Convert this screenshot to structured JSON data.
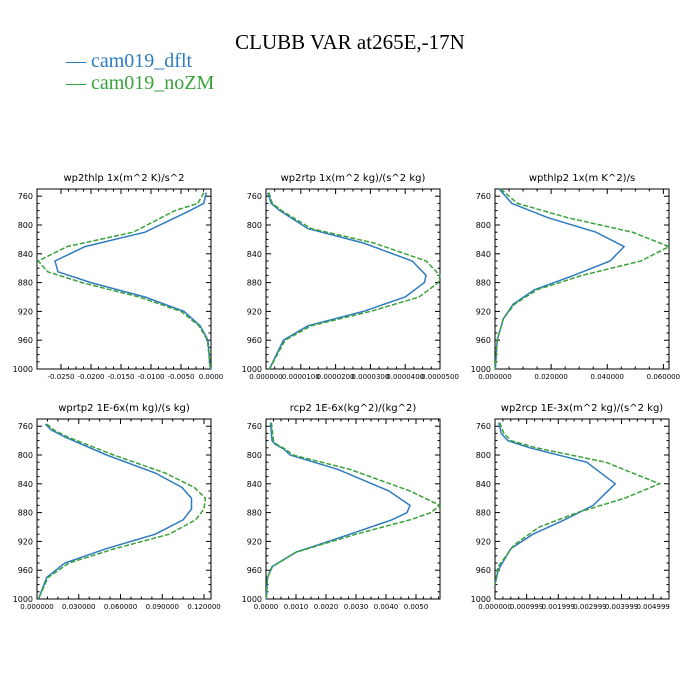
{
  "figure": {
    "title": "CLUBB VAR at265E,-17N",
    "legend": [
      {
        "label": "cam019_dflt",
        "color": "#2f7bbf"
      },
      {
        "label": "cam019_noZM",
        "color": "#3aa23a"
      }
    ]
  },
  "chart_data": [
    {
      "type": "line",
      "title": "wp2thlp   1x(m^2 K)/s^2",
      "y_ticks": [
        "760",
        "800",
        "840",
        "880",
        "920",
        "960",
        "1000"
      ],
      "x_ticks": [
        "-0.0250",
        "-0.0200",
        "-0.0150",
        "-0.0100",
        "-0.0050",
        "0.0000"
      ],
      "xlim": [
        -0.029,
        0.0
      ],
      "ylim": [
        750,
        1000
      ],
      "x_tick_values": [
        -0.025,
        -0.02,
        -0.015,
        -0.01,
        -0.005,
        0.0
      ],
      "series": [
        {
          "name": "cam019_dflt",
          "color": "#2f7bbf",
          "x": [
            -0.0008,
            -0.0012,
            -0.0035,
            -0.011,
            -0.021,
            -0.026,
            -0.0255,
            -0.02,
            -0.011,
            -0.0045,
            -0.0018,
            -0.0005,
            -0.0001
          ],
          "y": [
            755,
            770,
            780,
            810,
            830,
            850,
            865,
            880,
            900,
            920,
            940,
            960,
            1000
          ]
        },
        {
          "name": "cam019_noZM",
          "color": "#3aa23a",
          "x": [
            -0.0012,
            -0.0022,
            -0.006,
            -0.013,
            -0.024,
            -0.0288,
            -0.0272,
            -0.0215,
            -0.012,
            -0.005,
            -0.002,
            -0.0006,
            -0.0001
          ],
          "y": [
            755,
            770,
            780,
            810,
            830,
            850,
            865,
            880,
            900,
            920,
            940,
            960,
            1000
          ]
        }
      ]
    },
    {
      "type": "line",
      "title": "wp2rtp   1x(m^2 kg)/(s^2 kg)",
      "y_ticks": [
        "760",
        "800",
        "840",
        "880",
        "920",
        "960",
        "1000"
      ],
      "x_ticks": [
        "0.000000",
        "0.0000100",
        "0.0000200",
        "0.0000300",
        "0.0000400",
        "0.0000500"
      ],
      "xlim": [
        0.0,
        5e-05
      ],
      "ylim": [
        750,
        1000
      ],
      "x_tick_values": [
        0.0,
        1e-05,
        2e-05,
        3e-05,
        4e-05,
        5e-05
      ],
      "series": [
        {
          "name": "cam019_dflt",
          "color": "#2f7bbf",
          "x": [
            5e-07,
            1.5e-06,
            4e-06,
            1.2e-05,
            2.8e-05,
            4.2e-05,
            4.6e-05,
            4.55e-05,
            4e-05,
            2.8e-05,
            1.2e-05,
            5e-06,
            1e-06
          ],
          "y": [
            755,
            770,
            780,
            805,
            825,
            850,
            870,
            880,
            900,
            920,
            940,
            960,
            1000
          ]
        },
        {
          "name": "cam019_noZM",
          "color": "#3aa23a",
          "x": [
            8e-07,
            1.8e-06,
            4.5e-06,
            1.3e-05,
            3.1e-05,
            4.6e-05,
            5e-05,
            4.95e-05,
            4.4e-05,
            3e-05,
            1.3e-05,
            5.5e-06,
            1e-06
          ],
          "y": [
            755,
            770,
            780,
            805,
            825,
            850,
            870,
            880,
            900,
            920,
            940,
            960,
            1000
          ]
        }
      ]
    },
    {
      "type": "line",
      "title": "wpthlp2   1x(m K^2)/s",
      "y_ticks": [
        "760",
        "800",
        "840",
        "880",
        "920",
        "960",
        "1000"
      ],
      "x_ticks": [
        "0.000000",
        "0.020000",
        "0.040000",
        "0.060000"
      ],
      "xlim": [
        0.0,
        0.062
      ],
      "ylim": [
        750,
        1000
      ],
      "x_tick_values": [
        0.0,
        0.02,
        0.04,
        0.06
      ],
      "series": [
        {
          "name": "cam019_dflt",
          "color": "#2f7bbf",
          "x": [
            0.0015,
            0.006,
            0.019,
            0.036,
            0.046,
            0.041,
            0.028,
            0.014,
            0.0065,
            0.003,
            0.0008,
            0.0001
          ],
          "y": [
            750,
            770,
            790,
            810,
            830,
            850,
            870,
            890,
            910,
            930,
            960,
            1000
          ]
        },
        {
          "name": "cam019_noZM",
          "color": "#3aa23a",
          "x": [
            0.002,
            0.008,
            0.026,
            0.049,
            0.062,
            0.052,
            0.031,
            0.015,
            0.007,
            0.003,
            0.0008,
            0.0001
          ],
          "y": [
            750,
            770,
            790,
            810,
            830,
            850,
            870,
            890,
            910,
            930,
            960,
            1000
          ]
        }
      ]
    },
    {
      "type": "line",
      "title": "wprtp2   1E-6x(m kg)/(s kg)",
      "y_ticks": [
        "760",
        "800",
        "840",
        "880",
        "920",
        "960",
        "1000"
      ],
      "x_ticks": [
        "0.000000",
        "0.030000",
        "0.060000",
        "0.090000",
        "0.120000"
      ],
      "xlim": [
        0.0,
        0.125
      ],
      "ylim": [
        750,
        1000
      ],
      "x_tick_values": [
        0.0,
        0.03,
        0.06,
        0.09,
        0.12
      ],
      "series": [
        {
          "name": "cam019_dflt",
          "color": "#2f7bbf",
          "x": [
            0.006,
            0.01,
            0.02,
            0.05,
            0.085,
            0.104,
            0.111,
            0.111,
            0.105,
            0.085,
            0.05,
            0.02,
            0.007,
            0.001
          ],
          "y": [
            757,
            765,
            775,
            800,
            825,
            845,
            860,
            875,
            890,
            910,
            930,
            950,
            970,
            1000
          ]
        },
        {
          "name": "cam019_noZM",
          "color": "#3aa23a",
          "x": [
            0.007,
            0.012,
            0.022,
            0.055,
            0.092,
            0.113,
            0.121,
            0.12,
            0.114,
            0.095,
            0.056,
            0.023,
            0.008,
            0.001
          ],
          "y": [
            757,
            765,
            775,
            800,
            825,
            845,
            860,
            875,
            890,
            910,
            930,
            950,
            970,
            1000
          ]
        }
      ]
    },
    {
      "type": "line",
      "title": "rcp2   1E-6x(kg^2)/(kg^2)",
      "y_ticks": [
        "760",
        "800",
        "840",
        "880",
        "920",
        "960",
        "1000"
      ],
      "x_ticks": [
        "0.0000",
        "0.0010",
        "0.0020",
        "0.0030",
        "0.0040",
        "0.0050"
      ],
      "xlim": [
        0.0,
        0.0058
      ],
      "ylim": [
        750,
        1000
      ],
      "x_tick_values": [
        0.0,
        0.001,
        0.002,
        0.003,
        0.004,
        0.005
      ],
      "series": [
        {
          "name": "cam019_dflt",
          "color": "#2f7bbf",
          "x": [
            0.00015,
            0.0002,
            0.0003,
            0.0006,
            0.0008,
            0.0024,
            0.0041,
            0.0048,
            0.0047,
            0.0042,
            0.0028,
            0.001,
            0.0002,
            5e-05,
            1e-05
          ],
          "y": [
            755,
            780,
            785,
            792,
            800,
            820,
            850,
            870,
            880,
            890,
            910,
            935,
            955,
            970,
            1000
          ]
        },
        {
          "name": "cam019_noZM",
          "color": "#3aa23a",
          "x": [
            0.00018,
            0.00025,
            0.00035,
            0.00065,
            0.0009,
            0.0028,
            0.0048,
            0.0058,
            0.0055,
            0.0048,
            0.003,
            0.001,
            0.00022,
            5e-05,
            1e-05
          ],
          "y": [
            755,
            780,
            785,
            792,
            800,
            820,
            850,
            870,
            880,
            890,
            910,
            935,
            955,
            970,
            1000
          ]
        }
      ]
    },
    {
      "type": "line",
      "title": "wp2rcp   1E-3x(m^2 kg)/(s^2 kg)",
      "y_ticks": [
        "760",
        "800",
        "840",
        "880",
        "920",
        "960",
        "1000"
      ],
      "x_ticks": [
        "0.000000",
        "0.000999",
        "0.001999",
        "0.002999",
        "0.003999",
        "0.004999"
      ],
      "xlim": [
        0.0,
        0.0055
      ],
      "ylim": [
        750,
        1000
      ],
      "x_tick_values": [
        0.0,
        0.001,
        0.002,
        0.003,
        0.004,
        0.005
      ],
      "series": [
        {
          "name": "cam019_dflt",
          "color": "#2f7bbf",
          "x": [
            0.00012,
            0.0002,
            0.0004,
            0.0011,
            0.0029,
            0.0038,
            0.0031,
            0.0022,
            0.0012,
            0.0005,
            0.0001,
            0.0
          ],
          "y": [
            755,
            770,
            780,
            790,
            810,
            840,
            870,
            890,
            910,
            930,
            960,
            980
          ]
        },
        {
          "name": "cam019_noZM",
          "color": "#3aa23a",
          "x": [
            0.00015,
            0.00028,
            0.0005,
            0.0013,
            0.0035,
            0.0052,
            0.0041,
            0.0026,
            0.0014,
            0.0006,
            0.0001,
            0.0
          ],
          "y": [
            755,
            770,
            780,
            790,
            810,
            840,
            860,
            880,
            900,
            925,
            955,
            980
          ]
        }
      ]
    }
  ]
}
